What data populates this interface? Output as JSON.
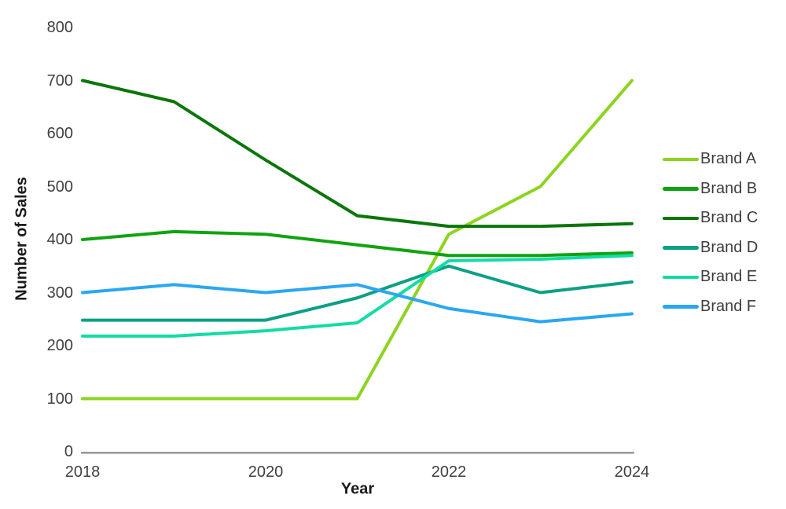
{
  "chart_data": {
    "type": "line",
    "title": "",
    "xlabel": "Year",
    "ylabel": "Number of Sales",
    "x": [
      2018,
      2019,
      2020,
      2021,
      2022,
      2023,
      2024
    ],
    "xticks": [
      2018,
      2020,
      2022,
      2024
    ],
    "yticks": [
      0,
      100,
      200,
      300,
      400,
      500,
      600,
      700,
      800
    ],
    "ylim": [
      0,
      800
    ],
    "grid": false,
    "legend_position": "right",
    "axis_color": "#7f7f7f",
    "tick_label_color": "#404040",
    "axis_title_color": "#1a1a1a",
    "legend_text_color": "#3f3f3f",
    "background_color": "#ffffff",
    "series": [
      {
        "name": "Brand A",
        "color": "#8CD41E",
        "values": [
          100,
          100,
          100,
          100,
          410,
          500,
          700
        ]
      },
      {
        "name": "Brand B",
        "color": "#10A310",
        "values": [
          400,
          415,
          410,
          390,
          370,
          370,
          375
        ]
      },
      {
        "name": "Brand C",
        "color": "#0A760A",
        "values": [
          700,
          660,
          550,
          445,
          425,
          425,
          430
        ]
      },
      {
        "name": "Brand D",
        "color": "#0BA085",
        "values": [
          248,
          248,
          248,
          290,
          350,
          300,
          320
        ]
      },
      {
        "name": "Brand E",
        "color": "#12DCA4",
        "values": [
          218,
          218,
          228,
          243,
          360,
          363,
          370
        ]
      },
      {
        "name": "Brand F",
        "color": "#2AA7F0",
        "values": [
          300,
          315,
          300,
          315,
          270,
          245,
          260
        ]
      }
    ]
  }
}
